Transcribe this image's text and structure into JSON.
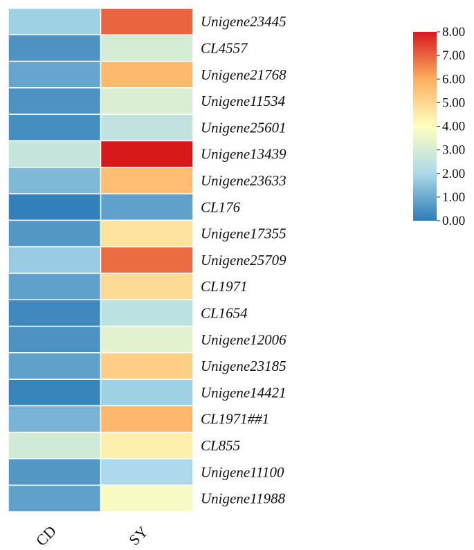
{
  "chart_data": {
    "type": "heatmap",
    "columns": [
      "CD",
      "SY"
    ],
    "rows": [
      "Unigene23445",
      "CL4557",
      "Unigene21768",
      "Unigene11534",
      "Unigene25601",
      "Unigene13439",
      "Unigene23633",
      "CL176",
      "Unigene17355",
      "Unigene25709",
      "CL1971",
      "CL1654",
      "Unigene12006",
      "Unigene23185",
      "Unigene14421",
      "CL1971##1",
      "CL855",
      "Unigene11100",
      "Unigene11988"
    ],
    "values": [
      [
        1.8,
        7.0
      ],
      [
        0.5,
        3.0
      ],
      [
        0.9,
        5.7
      ],
      [
        0.5,
        3.1
      ],
      [
        0.4,
        2.5
      ],
      [
        2.6,
        8.0
      ],
      [
        1.3,
        5.6
      ],
      [
        0.1,
        0.8
      ],
      [
        0.6,
        4.7
      ],
      [
        1.7,
        6.9
      ],
      [
        0.8,
        4.9
      ],
      [
        0.3,
        2.4
      ],
      [
        0.5,
        3.3
      ],
      [
        0.8,
        5.2
      ],
      [
        0.2,
        1.8
      ],
      [
        1.2,
        5.8
      ],
      [
        2.9,
        4.4
      ],
      [
        0.6,
        2.0
      ],
      [
        0.8,
        3.8
      ]
    ],
    "colorbar": {
      "min": 0,
      "max": 8,
      "ticks": [
        "0.00",
        "1.00",
        "2.00",
        "3.00",
        "4.00",
        "5.00",
        "6.00",
        "7.00",
        "8.00"
      ],
      "colors": [
        "#2c7bb6",
        "#abd9e9",
        "#ffffbf",
        "#fdae61",
        "#d7191c"
      ]
    }
  }
}
